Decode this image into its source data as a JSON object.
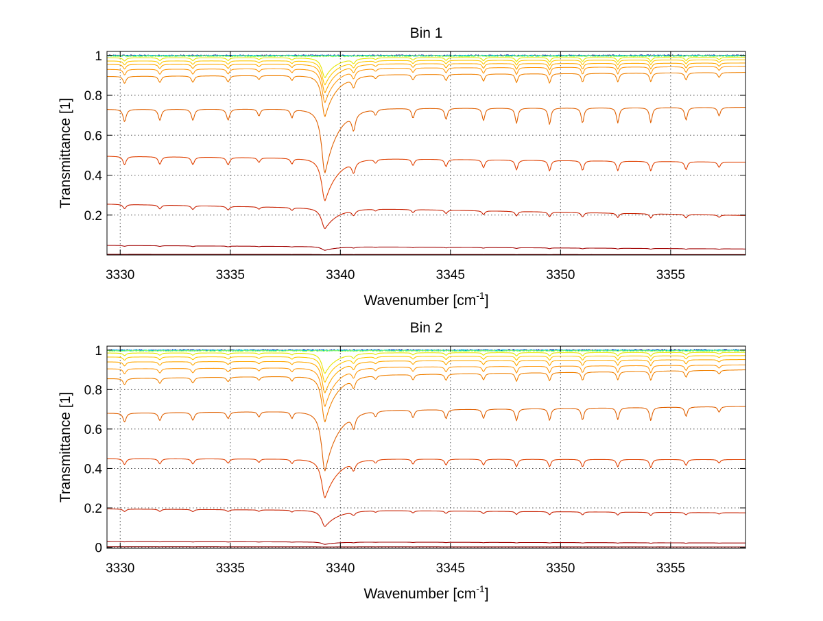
{
  "chart_data": [
    {
      "type": "line",
      "title": "Bin 1",
      "xlabel_main": "Wavenumber [cm",
      "xlabel_sup": "-1",
      "xlabel_end": "]",
      "ylabel": "Transmittance [1]",
      "xlim": [
        3329.4,
        3358.4
      ],
      "ylim": [
        0.0,
        1.02
      ],
      "xticks": [
        3330,
        3335,
        3340,
        3345,
        3350,
        3355
      ],
      "xtick_labels": [
        "3330",
        "3335",
        "3340",
        "3345",
        "3350",
        "3355"
      ],
      "yticks": [
        0.2,
        0.4,
        0.6,
        0.8,
        1.0
      ],
      "ytick_labels": [
        "0.2",
        "0.4",
        "0.6",
        "0.8",
        "1"
      ],
      "grid": true,
      "series": [
        {
          "color": "#00008f",
          "baseline": [
            1.0,
            1.0
          ],
          "noise": true
        },
        {
          "color": "#0090ff",
          "baseline": [
            0.999,
            0.999
          ],
          "noise": true
        },
        {
          "color": "#00e0c0",
          "baseline": [
            0.998,
            0.998
          ],
          "noise": true
        },
        {
          "color": "#9fff60",
          "baseline": [
            0.996,
            0.996
          ],
          "noise": true
        },
        {
          "color": "#e6e600",
          "baseline": [
            0.988,
            0.99
          ]
        },
        {
          "color": "#ffc800",
          "baseline": [
            0.972,
            0.978
          ]
        },
        {
          "color": "#ffa800",
          "baseline": [
            0.955,
            0.962
          ]
        },
        {
          "color": "#ff9a10",
          "baseline": [
            0.93,
            0.945
          ]
        },
        {
          "color": "#f08000",
          "baseline": [
            0.895,
            0.915
          ]
        },
        {
          "color": "#e06000",
          "baseline": [
            0.73,
            0.74
          ]
        },
        {
          "color": "#e04000",
          "baseline": [
            0.495,
            0.465
          ]
        },
        {
          "color": "#c82000",
          "baseline": [
            0.255,
            0.198
          ]
        },
        {
          "color": "#a00000",
          "baseline": [
            0.048,
            0.03
          ]
        },
        {
          "color": "#800000",
          "baseline": [
            0.003,
            0.002
          ]
        }
      ],
      "lines_at_x": [
        {
          "x": 3339.3,
          "depth": 0.58,
          "width": 0.16
        },
        {
          "x": 3330.2,
          "depth": 0.09,
          "width": 0.08
        },
        {
          "x": 3331.8,
          "depth": 0.08,
          "width": 0.08
        },
        {
          "x": 3333.3,
          "depth": 0.08,
          "width": 0.08
        },
        {
          "x": 3334.9,
          "depth": 0.08,
          "width": 0.08
        },
        {
          "x": 3336.3,
          "depth": 0.05,
          "width": 0.07
        },
        {
          "x": 3337.8,
          "depth": 0.06,
          "width": 0.07
        },
        {
          "x": 3340.6,
          "depth": 0.12,
          "width": 0.09
        },
        {
          "x": 3341.6,
          "depth": 0.04,
          "width": 0.07
        },
        {
          "x": 3343.3,
          "depth": 0.07,
          "width": 0.07
        },
        {
          "x": 3344.8,
          "depth": 0.08,
          "width": 0.07
        },
        {
          "x": 3346.5,
          "depth": 0.09,
          "width": 0.07
        },
        {
          "x": 3348.0,
          "depth": 0.11,
          "width": 0.07
        },
        {
          "x": 3349.5,
          "depth": 0.12,
          "width": 0.07
        },
        {
          "x": 3351.0,
          "depth": 0.11,
          "width": 0.07
        },
        {
          "x": 3352.6,
          "depth": 0.11,
          "width": 0.07
        },
        {
          "x": 3354.1,
          "depth": 0.11,
          "width": 0.07
        },
        {
          "x": 3355.7,
          "depth": 0.09,
          "width": 0.07
        },
        {
          "x": 3357.2,
          "depth": 0.06,
          "width": 0.07
        }
      ]
    },
    {
      "type": "line",
      "title": "Bin 2",
      "xlabel_main": "Wavenumber [cm",
      "xlabel_sup": "-1",
      "xlabel_end": "]",
      "ylabel": "Transmittance [1]",
      "xlim": [
        3329.4,
        3358.4
      ],
      "ylim": [
        -0.005,
        1.02
      ],
      "xticks": [
        3330,
        3335,
        3340,
        3345,
        3350,
        3355
      ],
      "xtick_labels": [
        "3330",
        "3335",
        "3340",
        "3345",
        "3350",
        "3355"
      ],
      "yticks": [
        0.0,
        0.2,
        0.4,
        0.6,
        0.8,
        1.0
      ],
      "ytick_labels": [
        "0",
        "0.2",
        "0.4",
        "0.6",
        "0.8",
        "1"
      ],
      "grid": true,
      "series": [
        {
          "color": "#00008f",
          "baseline": [
            1.0,
            1.0
          ],
          "noise": true
        },
        {
          "color": "#0090ff",
          "baseline": [
            0.999,
            0.999
          ],
          "noise": true
        },
        {
          "color": "#00e0c0",
          "baseline": [
            0.998,
            0.998
          ],
          "noise": true
        },
        {
          "color": "#9fff60",
          "baseline": [
            0.996,
            0.996
          ],
          "noise": true
        },
        {
          "color": "#e6e600",
          "baseline": [
            0.985,
            0.988
          ]
        },
        {
          "color": "#ffc800",
          "baseline": [
            0.965,
            0.972
          ]
        },
        {
          "color": "#ffa800",
          "baseline": [
            0.94,
            0.952
          ]
        },
        {
          "color": "#ff9a10",
          "baseline": [
            0.905,
            0.925
          ]
        },
        {
          "color": "#f08000",
          "baseline": [
            0.855,
            0.9
          ]
        },
        {
          "color": "#e06000",
          "baseline": [
            0.68,
            0.715
          ]
        },
        {
          "color": "#e04000",
          "baseline": [
            0.45,
            0.445
          ]
        },
        {
          "color": "#c82000",
          "baseline": [
            0.195,
            0.175
          ]
        },
        {
          "color": "#a00000",
          "baseline": [
            0.03,
            0.022
          ]
        },
        {
          "color": "#800000",
          "baseline": [
            0.003,
            0.002
          ]
        }
      ],
      "lines_at_x": [
        {
          "x": 3339.3,
          "depth": 0.58,
          "width": 0.16
        },
        {
          "x": 3330.2,
          "depth": 0.07,
          "width": 0.08
        },
        {
          "x": 3331.8,
          "depth": 0.06,
          "width": 0.08
        },
        {
          "x": 3333.3,
          "depth": 0.06,
          "width": 0.08
        },
        {
          "x": 3334.9,
          "depth": 0.05,
          "width": 0.08
        },
        {
          "x": 3336.3,
          "depth": 0.04,
          "width": 0.07
        },
        {
          "x": 3337.8,
          "depth": 0.05,
          "width": 0.07
        },
        {
          "x": 3340.6,
          "depth": 0.1,
          "width": 0.09
        },
        {
          "x": 3341.6,
          "depth": 0.04,
          "width": 0.07
        },
        {
          "x": 3343.3,
          "depth": 0.06,
          "width": 0.07
        },
        {
          "x": 3344.8,
          "depth": 0.07,
          "width": 0.07
        },
        {
          "x": 3346.5,
          "depth": 0.07,
          "width": 0.07
        },
        {
          "x": 3348.0,
          "depth": 0.09,
          "width": 0.07
        },
        {
          "x": 3349.5,
          "depth": 0.09,
          "width": 0.07
        },
        {
          "x": 3351.0,
          "depth": 0.09,
          "width": 0.07
        },
        {
          "x": 3352.6,
          "depth": 0.09,
          "width": 0.07
        },
        {
          "x": 3354.1,
          "depth": 0.1,
          "width": 0.07
        },
        {
          "x": 3355.7,
          "depth": 0.07,
          "width": 0.07
        },
        {
          "x": 3357.2,
          "depth": 0.04,
          "width": 0.07
        }
      ]
    }
  ]
}
